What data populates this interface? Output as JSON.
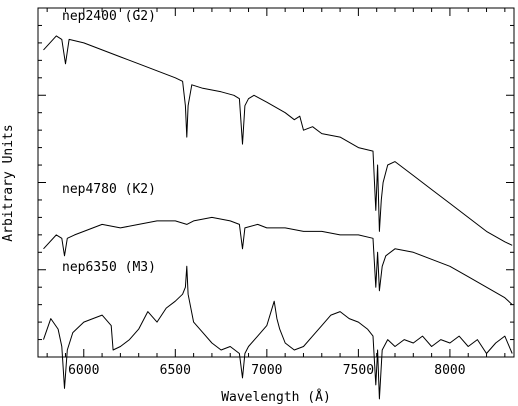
{
  "chart_data": {
    "type": "line",
    "title": "",
    "xlabel": "Wavelength (Å)",
    "ylabel": "Arbitrary Units",
    "xlim": [
      5750,
      8350
    ],
    "ylim": [
      0,
      1
    ],
    "x_ticks": [
      "6000",
      "6500",
      "7000",
      "7500",
      "8000"
    ],
    "x_tick_values": [
      6000,
      6500,
      7000,
      7500,
      8000
    ],
    "grid": false,
    "legend": "none",
    "line_color": "#000000",
    "series": [
      {
        "name": "nep2400 (G2)",
        "x": [
          5780,
          5850,
          5880,
          5900,
          5920,
          6000,
          6100,
          6200,
          6300,
          6400,
          6500,
          6540,
          6555,
          6563,
          6570,
          6590,
          6650,
          6750,
          6820,
          6850,
          6867,
          6880,
          6900,
          6930,
          7000,
          7100,
          7150,
          7180,
          7200,
          7250,
          7300,
          7400,
          7500,
          7580,
          7595,
          7605,
          7615,
          7625,
          7635,
          7660,
          7700,
          7800,
          7900,
          8000,
          8100,
          8200,
          8300,
          8340
        ],
        "y": [
          0.88,
          0.92,
          0.91,
          0.84,
          0.91,
          0.9,
          0.88,
          0.86,
          0.84,
          0.82,
          0.8,
          0.79,
          0.72,
          0.63,
          0.72,
          0.78,
          0.77,
          0.76,
          0.75,
          0.74,
          0.61,
          0.72,
          0.74,
          0.75,
          0.73,
          0.7,
          0.68,
          0.69,
          0.65,
          0.66,
          0.64,
          0.63,
          0.6,
          0.59,
          0.42,
          0.55,
          0.36,
          0.45,
          0.5,
          0.55,
          0.56,
          0.52,
          0.48,
          0.44,
          0.4,
          0.36,
          0.33,
          0.32
        ]
      },
      {
        "name": "nep4780 (K2)",
        "x": [
          5780,
          5850,
          5880,
          5895,
          5910,
          5950,
          6000,
          6100,
          6200,
          6300,
          6400,
          6500,
          6563,
          6600,
          6700,
          6800,
          6850,
          6867,
          6880,
          6950,
          7000,
          7100,
          7200,
          7300,
          7400,
          7500,
          7580,
          7595,
          7605,
          7615,
          7630,
          7650,
          7700,
          7800,
          7900,
          8000,
          8100,
          8200,
          8300,
          8340
        ],
        "y": [
          0.31,
          0.35,
          0.34,
          0.29,
          0.34,
          0.35,
          0.36,
          0.38,
          0.37,
          0.38,
          0.39,
          0.39,
          0.38,
          0.39,
          0.4,
          0.39,
          0.38,
          0.31,
          0.37,
          0.38,
          0.37,
          0.37,
          0.36,
          0.36,
          0.35,
          0.35,
          0.34,
          0.2,
          0.3,
          0.19,
          0.26,
          0.29,
          0.31,
          0.3,
          0.28,
          0.26,
          0.23,
          0.2,
          0.17,
          0.15
        ]
      },
      {
        "name": "nep6350 (M3)",
        "x": [
          5780,
          5820,
          5860,
          5880,
          5895,
          5910,
          5940,
          6000,
          6050,
          6100,
          6150,
          6160,
          6200,
          6250,
          6300,
          6350,
          6400,
          6450,
          6500,
          6540,
          6555,
          6563,
          6570,
          6600,
          6650,
          6700,
          6750,
          6800,
          6850,
          6867,
          6880,
          6900,
          6950,
          7000,
          7040,
          7055,
          7070,
          7100,
          7150,
          7200,
          7250,
          7300,
          7350,
          7400,
          7450,
          7500,
          7550,
          7580,
          7595,
          7605,
          7615,
          7630,
          7660,
          7700,
          7750,
          7800,
          7850,
          7900,
          7950,
          8000,
          8050,
          8100,
          8150,
          8200,
          8250,
          8300,
          8340
        ],
        "y": [
          0.05,
          0.11,
          0.08,
          0.03,
          -0.09,
          0.02,
          0.07,
          0.1,
          0.11,
          0.12,
          0.09,
          0.02,
          0.03,
          0.05,
          0.08,
          0.13,
          0.1,
          0.14,
          0.16,
          0.18,
          0.2,
          0.26,
          0.18,
          0.1,
          0.07,
          0.04,
          0.02,
          0.03,
          0.01,
          -0.06,
          0.01,
          0.03,
          0.06,
          0.09,
          0.16,
          0.11,
          0.08,
          0.04,
          0.02,
          0.03,
          0.06,
          0.09,
          0.12,
          0.13,
          0.11,
          0.1,
          0.08,
          0.06,
          -0.08,
          0.02,
          -0.12,
          0.02,
          0.05,
          0.03,
          0.05,
          0.04,
          0.06,
          0.03,
          0.05,
          0.04,
          0.06,
          0.03,
          0.05,
          0.01,
          0.04,
          0.06,
          0.01
        ]
      }
    ]
  }
}
